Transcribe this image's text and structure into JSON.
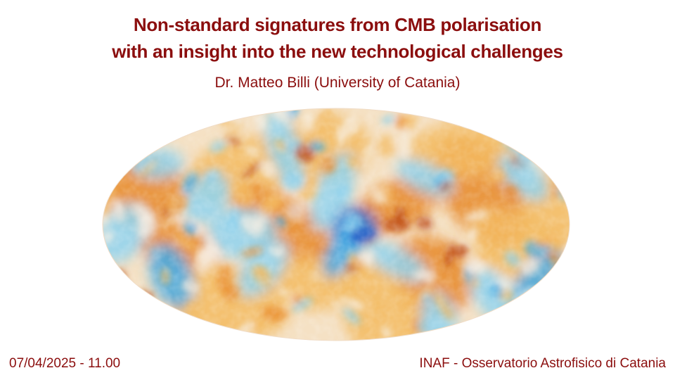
{
  "slide": {
    "title_line1": "Non-standard signatures from CMB polarisation",
    "title_line2": "with an insight into the new technological challenges",
    "speaker": "Dr. Matteo Billi (University of Catania)",
    "date_time": "07/04/2025 - 11.00",
    "venue": "INAF - Osservatorio Astrofisico di Catania"
  },
  "image": {
    "icon": "cmb-polarisation-mollweide-map",
    "palette": {
      "hot_dark": "#b8440f",
      "hot": "#e8892a",
      "warm": "#f3bb62",
      "neutral": "#f7efe4",
      "cool": "#8fd3f0",
      "cold": "#3fa9e6",
      "cold_dark": "#2a62c8"
    }
  }
}
